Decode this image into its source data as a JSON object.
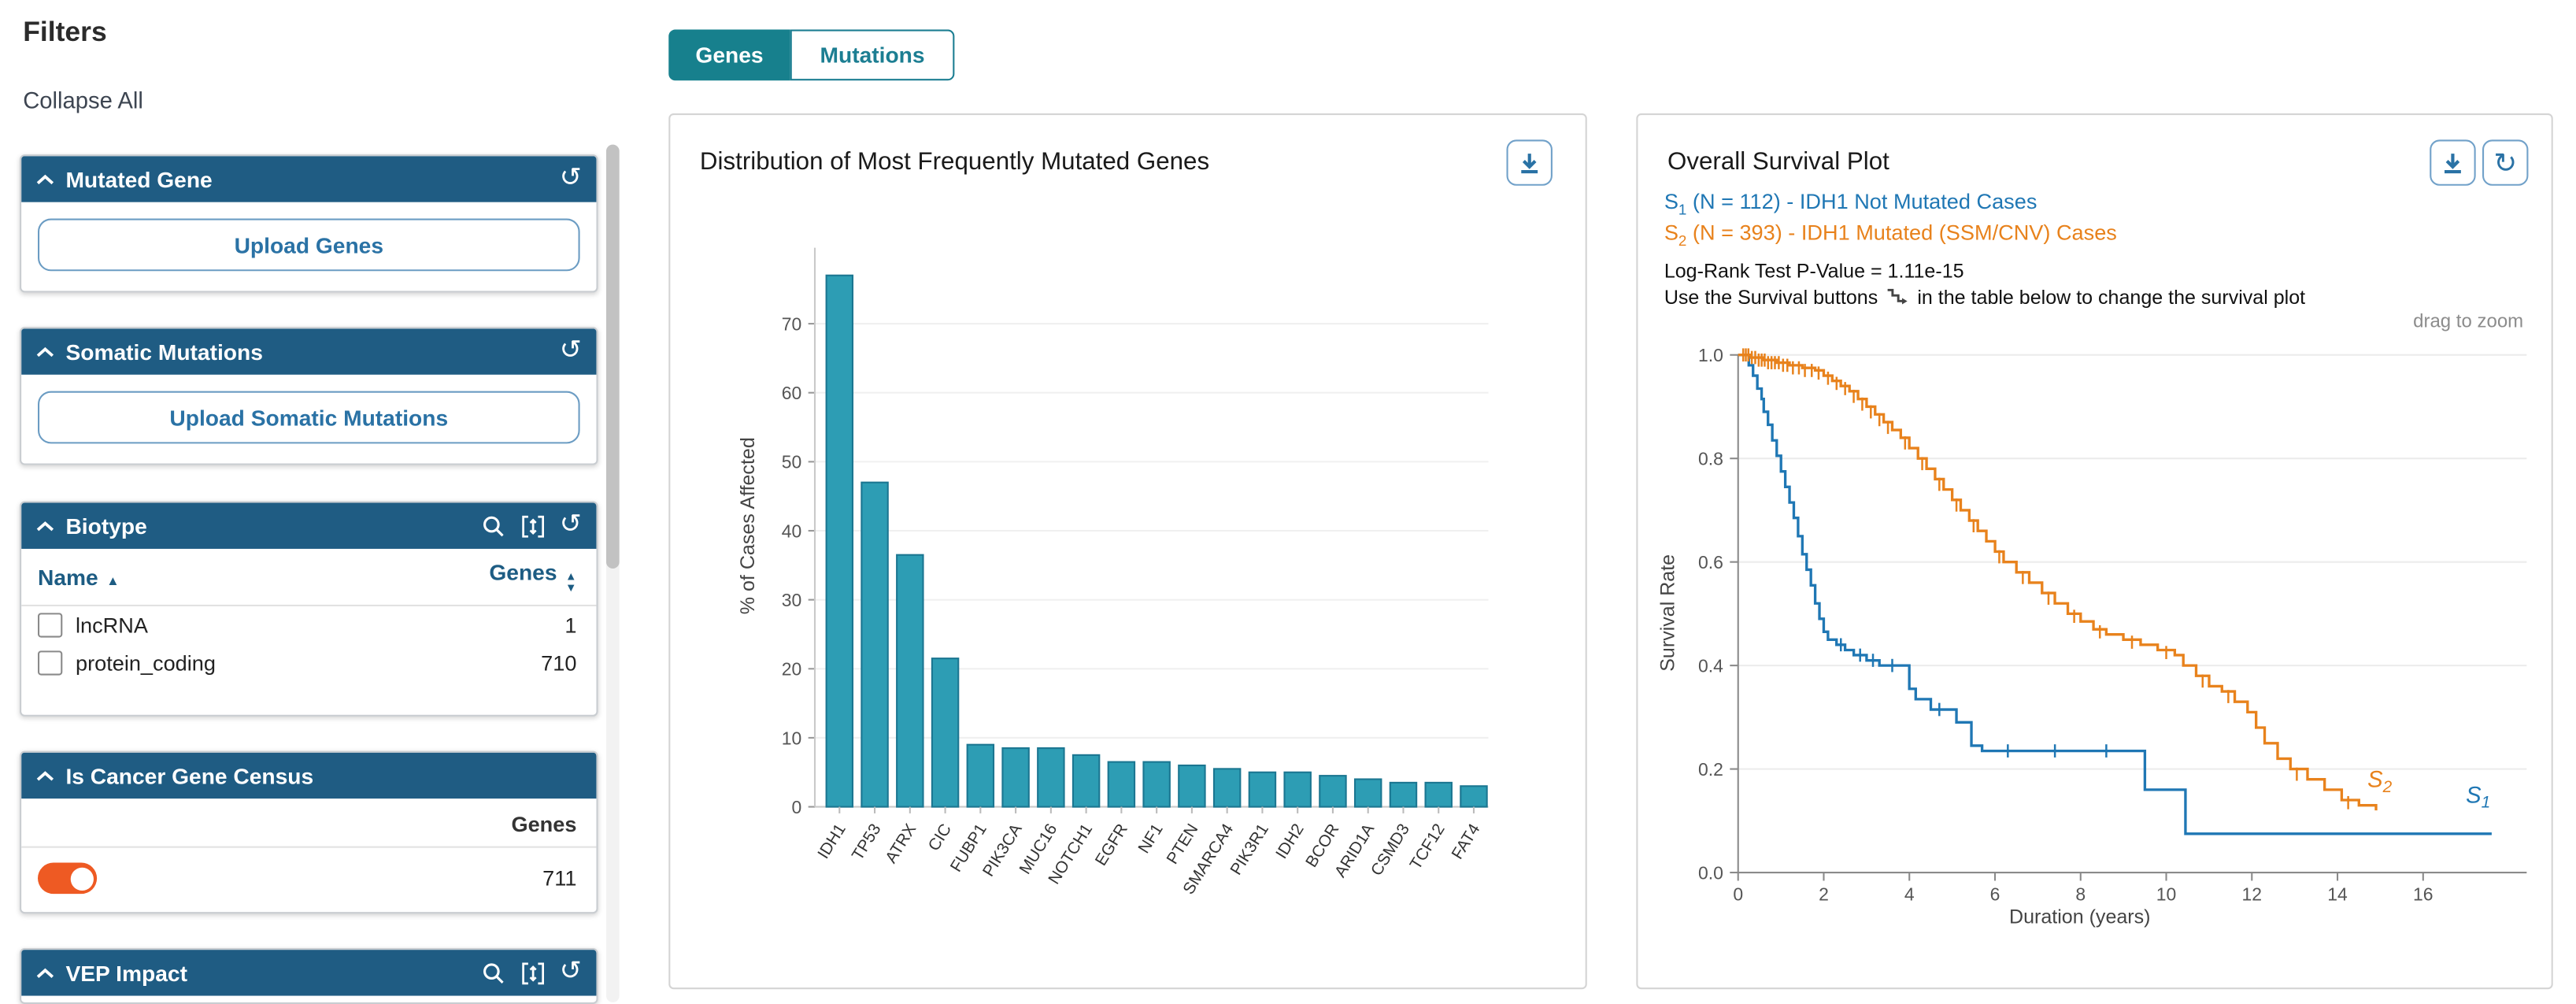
{
  "filters": {
    "title": "Filters",
    "collapse_all": "Collapse All",
    "mutated_gene": {
      "title": "Mutated Gene",
      "upload": "Upload Genes"
    },
    "somatic": {
      "title": "Somatic Mutations",
      "upload": "Upload Somatic Mutations"
    },
    "biotype": {
      "title": "Biotype",
      "col_name": "Name",
      "col_genes": "Genes",
      "rows": [
        {
          "label": "lncRNA",
          "count": "1"
        },
        {
          "label": "protein_coding",
          "count": "710"
        }
      ]
    },
    "cgc": {
      "title": "Is Cancer Gene Census",
      "col": "Genes",
      "count": "711",
      "toggle_state": "on"
    },
    "vep": {
      "title": "VEP Impact"
    }
  },
  "tabs": {
    "genes": "Genes",
    "mutations": "Mutations"
  },
  "bar_card": {
    "title": "Distribution of Most Frequently Mutated Genes"
  },
  "survival_card": {
    "title": "Overall Survival Plot",
    "legend": [
      {
        "base": "S",
        "sub": "1",
        "text": " (N = 112) - IDH1 Not Mutated Cases",
        "color": "#1f77b4"
      },
      {
        "base": "S",
        "sub": "2",
        "text": " (N = 393) - IDH1 Mutated (SSM/CNV) Cases",
        "color": "#e8821c"
      }
    ],
    "pvalue": "Log-Rank Test P-Value = 1.11e-15",
    "hint_before": "Use the Survival buttons",
    "hint_after": "in the table below to change the survival plot",
    "drag_hint": "drag to zoom"
  },
  "glyphs": {
    "reset": "↺",
    "reload": "↻",
    "sort_asc": "▲",
    "sort_desc": "▼"
  },
  "colors": {
    "header_bg": "#1f5c83",
    "accent_blue": "#2a72a5",
    "tab_teal": "#17808d",
    "toggle_orange": "#ee5a23",
    "s1_blue": "#1f77b4",
    "s2_orange": "#e8821c"
  },
  "chart_data": [
    {
      "type": "bar",
      "title": "Distribution of Most Frequently Mutated Genes",
      "xlabel": "",
      "ylabel": "% of Cases Affected",
      "categories": [
        "IDH1",
        "TP53",
        "ATRX",
        "CIC",
        "FUBP1",
        "PIK3CA",
        "MUC16",
        "NOTCH1",
        "EGFR",
        "NF1",
        "PTEN",
        "SMARCA4",
        "PIK3R1",
        "IDH2",
        "BCOR",
        "ARID1A",
        "CSMD3",
        "TCF12",
        "FAT4"
      ],
      "values": [
        77,
        47,
        36.5,
        21.5,
        9,
        8.5,
        8.5,
        7.5,
        6.5,
        6.5,
        6,
        5.5,
        5,
        5,
        4.5,
        4,
        3.5,
        3.5,
        3
      ],
      "yticks": [
        0,
        10,
        20,
        30,
        40,
        50,
        60,
        70
      ],
      "ylim": [
        0,
        81
      ],
      "grid": "horizontal-light",
      "bar_color": "#2d9db4",
      "bar_border": "#1b7691"
    },
    {
      "type": "line",
      "subtype": "kaplan-meier-step",
      "title": "Overall Survival Plot",
      "xlabel": "Duration (years)",
      "ylabel": "Survival Rate",
      "xticks": [
        0,
        2,
        4,
        6,
        8,
        10,
        12,
        14,
        16
      ],
      "yticks": [
        0.0,
        0.2,
        0.4,
        0.6,
        0.8,
        1.0
      ],
      "xlim": [
        0,
        18.3
      ],
      "ylim": [
        0,
        1.05
      ],
      "grid": "horizontal-light",
      "legend_position": "top-left-above-plot",
      "series": [
        {
          "name": "S1 (N = 112) - IDH1 Not Mutated Cases",
          "color": "#1f77b4",
          "label_base": "S",
          "label_sub": "1",
          "label_pos": [
            17.0,
            0.135
          ],
          "points": [
            [
              0,
              1.0
            ],
            [
              0.25,
              0.98
            ],
            [
              0.35,
              0.96
            ],
            [
              0.45,
              0.935
            ],
            [
              0.55,
              0.915
            ],
            [
              0.6,
              0.89
            ],
            [
              0.7,
              0.865
            ],
            [
              0.8,
              0.835
            ],
            [
              0.9,
              0.805
            ],
            [
              1.0,
              0.775
            ],
            [
              1.1,
              0.745
            ],
            [
              1.2,
              0.715
            ],
            [
              1.3,
              0.685
            ],
            [
              1.4,
              0.65
            ],
            [
              1.5,
              0.615
            ],
            [
              1.6,
              0.585
            ],
            [
              1.7,
              0.555
            ],
            [
              1.8,
              0.52
            ],
            [
              1.9,
              0.49
            ],
            [
              2.0,
              0.465
            ],
            [
              2.1,
              0.45
            ],
            [
              2.3,
              0.44
            ],
            [
              2.5,
              0.43
            ],
            [
              2.7,
              0.42
            ],
            [
              3.0,
              0.41
            ],
            [
              3.3,
              0.4
            ],
            [
              3.9,
              0.4
            ],
            [
              4.0,
              0.355
            ],
            [
              4.15,
              0.335
            ],
            [
              4.5,
              0.315
            ],
            [
              4.95,
              0.315
            ],
            [
              5.1,
              0.29
            ],
            [
              5.45,
              0.245
            ],
            [
              5.7,
              0.235
            ],
            [
              9.4,
              0.235
            ],
            [
              9.5,
              0.16
            ],
            [
              10.35,
              0.16
            ],
            [
              10.45,
              0.075
            ],
            [
              17.6,
              0.075
            ]
          ],
          "censors": [
            [
              2.4,
              0.44
            ],
            [
              2.85,
              0.42
            ],
            [
              3.15,
              0.41
            ],
            [
              3.6,
              0.4
            ],
            [
              4.7,
              0.315
            ],
            [
              6.3,
              0.235
            ],
            [
              7.4,
              0.235
            ],
            [
              8.6,
              0.235
            ]
          ]
        },
        {
          "name": "S2 (N = 393) - IDH1 Mutated (SSM/CNV) Cases",
          "color": "#e8821c",
          "label_base": "S",
          "label_sub": "2",
          "label_pos": [
            14.7,
            0.165
          ],
          "points": [
            [
              0,
              1.0
            ],
            [
              0.3,
              0.995
            ],
            [
              0.6,
              0.99
            ],
            [
              0.9,
              0.985
            ],
            [
              1.2,
              0.98
            ],
            [
              1.5,
              0.975
            ],
            [
              1.8,
              0.97
            ],
            [
              2.0,
              0.96
            ],
            [
              2.2,
              0.95
            ],
            [
              2.4,
              0.94
            ],
            [
              2.6,
              0.93
            ],
            [
              2.8,
              0.915
            ],
            [
              3.0,
              0.9
            ],
            [
              3.2,
              0.885
            ],
            [
              3.4,
              0.87
            ],
            [
              3.6,
              0.855
            ],
            [
              3.8,
              0.84
            ],
            [
              4.0,
              0.82
            ],
            [
              4.2,
              0.8
            ],
            [
              4.4,
              0.78
            ],
            [
              4.6,
              0.76
            ],
            [
              4.8,
              0.74
            ],
            [
              5.0,
              0.72
            ],
            [
              5.2,
              0.7
            ],
            [
              5.4,
              0.68
            ],
            [
              5.6,
              0.66
            ],
            [
              5.8,
              0.64
            ],
            [
              6.0,
              0.62
            ],
            [
              6.2,
              0.6
            ],
            [
              6.5,
              0.58
            ],
            [
              6.8,
              0.56
            ],
            [
              7.1,
              0.54
            ],
            [
              7.4,
              0.52
            ],
            [
              7.7,
              0.5
            ],
            [
              8.0,
              0.485
            ],
            [
              8.3,
              0.47
            ],
            [
              8.6,
              0.46
            ],
            [
              9.0,
              0.45
            ],
            [
              9.4,
              0.44
            ],
            [
              9.8,
              0.43
            ],
            [
              10.2,
              0.42
            ],
            [
              10.4,
              0.4
            ],
            [
              10.7,
              0.38
            ],
            [
              11.0,
              0.36
            ],
            [
              11.3,
              0.35
            ],
            [
              11.6,
              0.33
            ],
            [
              11.9,
              0.31
            ],
            [
              12.1,
              0.28
            ],
            [
              12.3,
              0.25
            ],
            [
              12.6,
              0.22
            ],
            [
              12.9,
              0.2
            ],
            [
              13.3,
              0.18
            ],
            [
              13.7,
              0.16
            ],
            [
              14.1,
              0.14
            ],
            [
              14.5,
              0.13
            ],
            [
              14.9,
              0.12
            ]
          ],
          "censors": [
            [
              0.12,
              1.0
            ],
            [
              0.18,
              1.0
            ],
            [
              0.24,
              1.0
            ],
            [
              0.32,
              0.995
            ],
            [
              0.4,
              0.995
            ],
            [
              0.48,
              0.99
            ],
            [
              0.55,
              0.99
            ],
            [
              0.62,
              0.99
            ],
            [
              0.7,
              0.985
            ],
            [
              0.78,
              0.985
            ],
            [
              0.86,
              0.985
            ],
            [
              0.95,
              0.985
            ],
            [
              1.05,
              0.98
            ],
            [
              1.15,
              0.98
            ],
            [
              1.28,
              0.975
            ],
            [
              1.42,
              0.975
            ],
            [
              1.56,
              0.97
            ],
            [
              1.72,
              0.97
            ],
            [
              1.88,
              0.965
            ],
            [
              2.1,
              0.955
            ],
            [
              2.3,
              0.945
            ],
            [
              2.5,
              0.935
            ],
            [
              2.7,
              0.92
            ],
            [
              2.9,
              0.905
            ],
            [
              3.1,
              0.89
            ],
            [
              3.3,
              0.875
            ],
            [
              3.5,
              0.86
            ],
            [
              3.9,
              0.83
            ],
            [
              4.3,
              0.79
            ],
            [
              4.7,
              0.75
            ],
            [
              5.1,
              0.71
            ],
            [
              5.5,
              0.67
            ],
            [
              6.1,
              0.61
            ],
            [
              6.65,
              0.57
            ],
            [
              7.25,
              0.53
            ],
            [
              7.85,
              0.495
            ],
            [
              8.45,
              0.465
            ],
            [
              9.2,
              0.445
            ],
            [
              10.0,
              0.425
            ],
            [
              10.85,
              0.37
            ],
            [
              11.45,
              0.34
            ],
            [
              13.05,
              0.19
            ],
            [
              14.25,
              0.135
            ]
          ]
        }
      ]
    }
  ]
}
